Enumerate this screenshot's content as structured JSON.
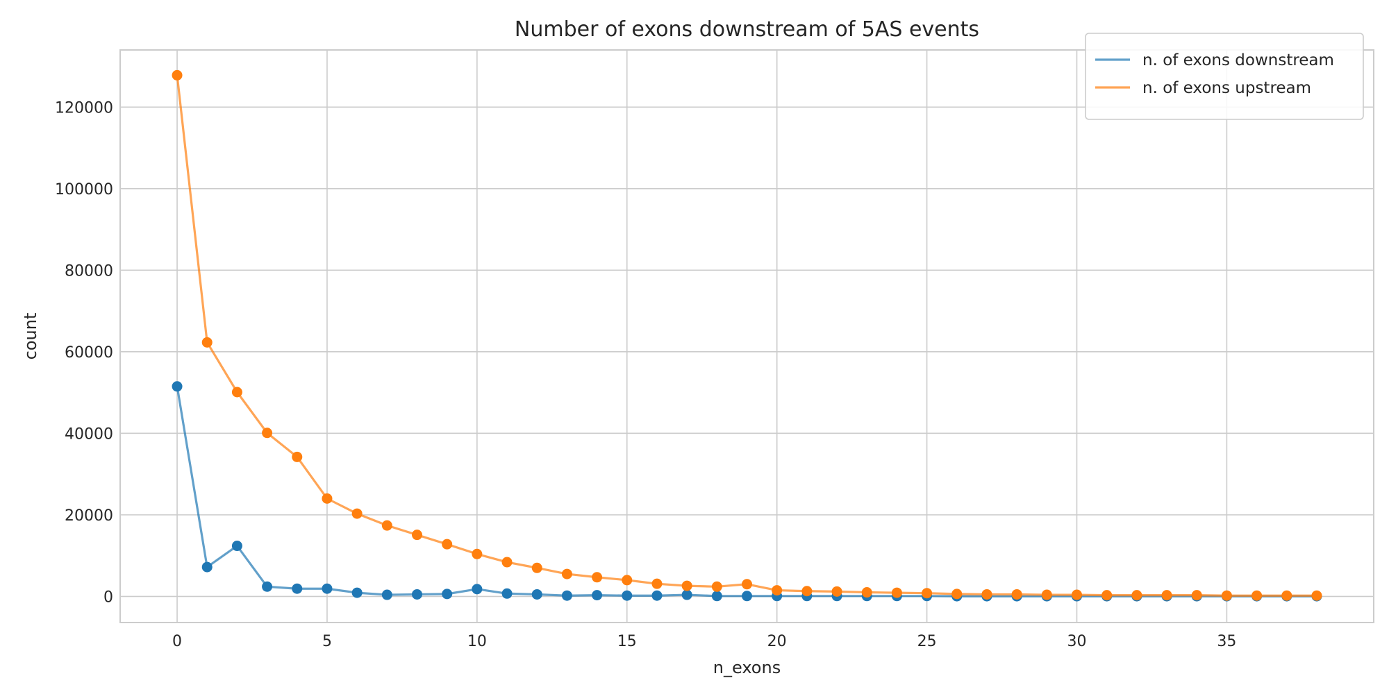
{
  "chart_data": {
    "type": "line",
    "title": "Number of exons downstream of 5AS events",
    "xlabel": "n_exons",
    "ylabel": "count",
    "xlim": [
      -1.9,
      39.9
    ],
    "ylim": [
      -6400,
      134000
    ],
    "xticks": [
      0,
      5,
      10,
      15,
      20,
      25,
      30,
      35
    ],
    "yticks": [
      0,
      20000,
      40000,
      60000,
      80000,
      100000,
      120000
    ],
    "grid": true,
    "legend_position": "top-right",
    "x": [
      0,
      1,
      2,
      3,
      4,
      5,
      6,
      7,
      8,
      9,
      10,
      11,
      12,
      13,
      14,
      15,
      16,
      17,
      18,
      19,
      20,
      21,
      22,
      23,
      24,
      25,
      26,
      27,
      28,
      29,
      30,
      31,
      32,
      33,
      34,
      35,
      36,
      37,
      38
    ],
    "series": [
      {
        "name": "n. of exons downstream",
        "color": "#1f77b4",
        "values": [
          51500,
          7200,
          12400,
          2400,
          1900,
          1900,
          900,
          400,
          500,
          600,
          1800,
          700,
          500,
          200,
          300,
          200,
          200,
          400,
          100,
          100,
          100,
          100,
          100,
          100,
          100,
          100,
          50,
          50,
          50,
          50,
          50,
          50,
          50,
          50,
          50,
          50,
          50,
          50,
          50
        ]
      },
      {
        "name": "n. of exons upstream",
        "color": "#ff7f0e",
        "values": [
          127800,
          62300,
          50100,
          40100,
          34200,
          24000,
          20300,
          17400,
          15100,
          12800,
          10400,
          8400,
          7000,
          5500,
          4700,
          4000,
          3100,
          2600,
          2400,
          3000,
          1500,
          1300,
          1200,
          1000,
          900,
          800,
          600,
          500,
          500,
          400,
          400,
          300,
          300,
          300,
          300,
          200,
          200,
          200,
          200
        ]
      }
    ]
  }
}
